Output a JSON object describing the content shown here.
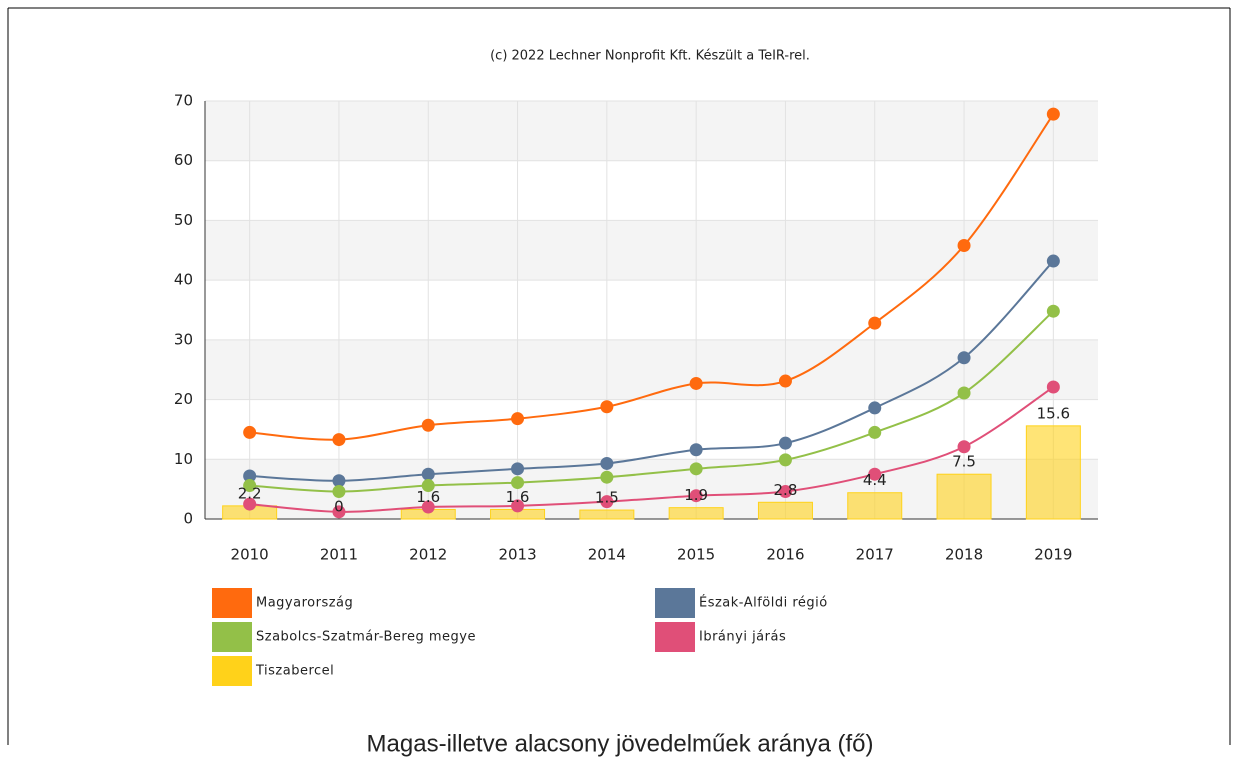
{
  "chart_data": {
    "type": "line",
    "title": "(c) 2022 Lechner Nonprofit Kft. Készült a TeIR-rel.",
    "caption": "Magas-illetve alacsony jövedelműek aránya (fő)",
    "categories": [
      "2010",
      "2011",
      "2012",
      "2013",
      "2014",
      "2015",
      "2016",
      "2017",
      "2018",
      "2019"
    ],
    "series": [
      {
        "name": "Magyarország",
        "color": "#ff6a0e",
        "type": "line",
        "values": [
          14.5,
          13.3,
          15.7,
          16.8,
          18.8,
          22.7,
          23.1,
          32.8,
          45.8,
          67.8
        ]
      },
      {
        "name": "Észak-Alföldi régió",
        "color": "#5b7799",
        "type": "line",
        "values": [
          7.2,
          6.4,
          7.5,
          8.4,
          9.3,
          11.6,
          12.7,
          18.6,
          27.0,
          43.2
        ]
      },
      {
        "name": "Szabolcs-Szatmár-Bereg megye",
        "color": "#93c048",
        "type": "line",
        "values": [
          5.6,
          4.6,
          5.6,
          6.1,
          7.0,
          8.4,
          9.9,
          14.5,
          21.1,
          34.8
        ]
      },
      {
        "name": "Ibrányi járás",
        "color": "#e04f78",
        "type": "line",
        "values": [
          2.5,
          1.2,
          2.0,
          2.2,
          2.9,
          3.9,
          4.6,
          7.5,
          12.1,
          22.1
        ]
      },
      {
        "name": "Tiszabercel",
        "color": "#ffd21a",
        "type": "bar",
        "values": [
          2.2,
          0,
          1.6,
          1.6,
          1.5,
          1.9,
          2.8,
          4.4,
          7.5,
          15.6
        ]
      }
    ],
    "ylim": [
      0,
      70
    ],
    "yticks": [
      0,
      10,
      20,
      30,
      40,
      50,
      60,
      70
    ],
    "grid": true
  }
}
